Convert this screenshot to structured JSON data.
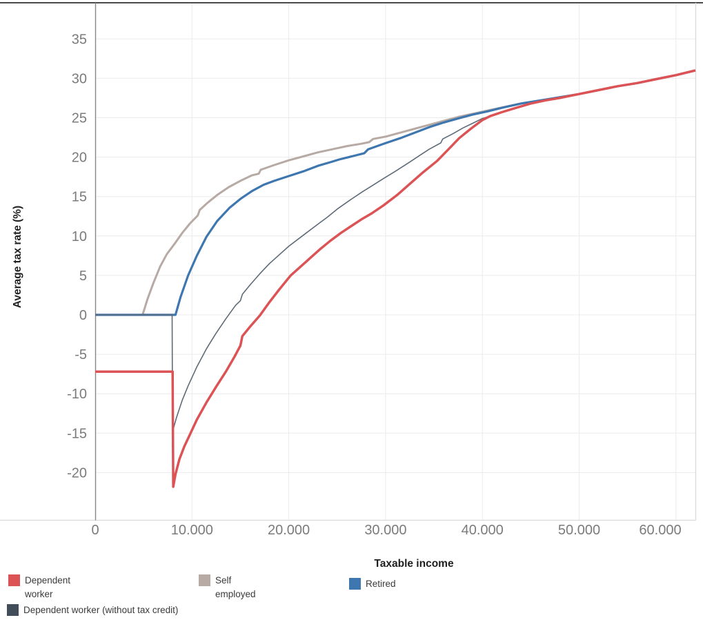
{
  "chart": {
    "x_axis_title": "Taxable income",
    "y_axis_title": "Average tax rate (%)",
    "x_ticks": [
      {
        "label": "0",
        "value": 0
      },
      {
        "label": "10.000",
        "value": 10000
      },
      {
        "label": "20.000",
        "value": 20000
      },
      {
        "label": "30.000",
        "value": 30000
      },
      {
        "label": "40.000",
        "value": 40000
      },
      {
        "label": "50.000",
        "value": 50000
      },
      {
        "label": "60.000",
        "value": 60000
      }
    ],
    "y_ticks": [
      {
        "label": "35",
        "value": 35
      },
      {
        "label": "30",
        "value": 30
      },
      {
        "label": "25",
        "value": 25
      },
      {
        "label": "20",
        "value": 20
      },
      {
        "label": "15",
        "value": 15
      },
      {
        "label": "10",
        "value": 10
      },
      {
        "label": "5",
        "value": 5
      },
      {
        "label": "0",
        "value": 0
      },
      {
        "label": "-5",
        "value": -5
      },
      {
        "label": "-10",
        "value": -10
      },
      {
        "label": "-15",
        "value": -15
      },
      {
        "label": "-20",
        "value": -20
      }
    ]
  },
  "chart_data": {
    "type": "line",
    "title": "",
    "xlabel": "Taxable income",
    "ylabel": "Average tax rate (%)",
    "xlim": [
      0,
      62000
    ],
    "ylim": [
      -26,
      39
    ],
    "grid": true,
    "legend_position": "bottom",
    "series": [
      {
        "id": "self-employed",
        "name": "Self employed",
        "color": "#b7aaa4",
        "width": 3,
        "points": [
          [
            0,
            0
          ],
          [
            4900,
            0
          ],
          [
            5400,
            2
          ],
          [
            6000,
            4
          ],
          [
            6700,
            6.1
          ],
          [
            7400,
            7.7
          ],
          [
            8200,
            9
          ],
          [
            9000,
            10.4
          ],
          [
            9800,
            11.6
          ],
          [
            10600,
            12.6
          ],
          [
            10800,
            13.3
          ],
          [
            11600,
            14.2
          ],
          [
            12600,
            15.2
          ],
          [
            13800,
            16.2
          ],
          [
            15000,
            17
          ],
          [
            16200,
            17.7
          ],
          [
            16900,
            17.9
          ],
          [
            17100,
            18.4
          ],
          [
            18500,
            19
          ],
          [
            20000,
            19.6
          ],
          [
            21500,
            20.1
          ],
          [
            23000,
            20.6
          ],
          [
            24500,
            21
          ],
          [
            26000,
            21.4
          ],
          [
            27500,
            21.7
          ],
          [
            28300,
            21.9
          ],
          [
            28700,
            22.3
          ],
          [
            30000,
            22.6
          ],
          [
            31500,
            23.1
          ],
          [
            33000,
            23.6
          ],
          [
            34500,
            24.1
          ],
          [
            36000,
            24.6
          ],
          [
            37500,
            25.1
          ],
          [
            39000,
            25.5
          ],
          [
            40500,
            25.9
          ],
          [
            42000,
            26.3
          ],
          [
            44000,
            26.8
          ],
          [
            46000,
            27.2
          ],
          [
            48000,
            27.6
          ],
          [
            50000,
            28
          ],
          [
            52000,
            28.5
          ],
          [
            54000,
            29
          ],
          [
            56000,
            29.4
          ],
          [
            58000,
            29.9
          ],
          [
            60000,
            30.4
          ],
          [
            62000,
            31
          ]
        ]
      },
      {
        "id": "retired",
        "name": "Retired",
        "color": "#3e76af",
        "width": 3.2,
        "points": [
          [
            0,
            0
          ],
          [
            8300,
            0
          ],
          [
            8800,
            2.2
          ],
          [
            9600,
            5
          ],
          [
            10500,
            7.5
          ],
          [
            11500,
            9.9
          ],
          [
            12600,
            11.9
          ],
          [
            13900,
            13.6
          ],
          [
            15000,
            14.7
          ],
          [
            16200,
            15.7
          ],
          [
            17400,
            16.5
          ],
          [
            18500,
            17
          ],
          [
            20000,
            17.6
          ],
          [
            21500,
            18.2
          ],
          [
            23000,
            18.9
          ],
          [
            24400,
            19.4
          ],
          [
            25200,
            19.7
          ],
          [
            26500,
            20.1
          ],
          [
            27800,
            20.5
          ],
          [
            28200,
            21
          ],
          [
            29800,
            21.7
          ],
          [
            31500,
            22.4
          ],
          [
            33000,
            23.1
          ],
          [
            34500,
            23.8
          ],
          [
            36000,
            24.4
          ],
          [
            37500,
            24.9
          ],
          [
            39000,
            25.4
          ],
          [
            40500,
            25.8
          ],
          [
            42000,
            26.25
          ],
          [
            44000,
            26.8
          ],
          [
            46000,
            27.2
          ],
          [
            48000,
            27.6
          ],
          [
            50000,
            28
          ],
          [
            52000,
            28.5
          ],
          [
            54000,
            29
          ],
          [
            56000,
            29.4
          ],
          [
            58000,
            29.9
          ],
          [
            60000,
            30.4
          ],
          [
            62000,
            31
          ]
        ]
      },
      {
        "id": "dependent-worker-no-credit",
        "name": "Dependent worker (without tax credit)",
        "color": "#5d6a77",
        "width": 1.6,
        "points": [
          [
            0,
            0
          ],
          [
            7950,
            0
          ],
          [
            7990,
            -14.8
          ],
          [
            8400,
            -13
          ],
          [
            9000,
            -10.8
          ],
          [
            9600,
            -9
          ],
          [
            10500,
            -6.6
          ],
          [
            11500,
            -4.3
          ],
          [
            12500,
            -2.3
          ],
          [
            13500,
            -0.5
          ],
          [
            14500,
            1.2
          ],
          [
            15000,
            1.8
          ],
          [
            15200,
            2.6
          ],
          [
            16000,
            3.8
          ],
          [
            17000,
            5.2
          ],
          [
            18000,
            6.5
          ],
          [
            19000,
            7.6
          ],
          [
            20000,
            8.7
          ],
          [
            21500,
            10.1
          ],
          [
            23000,
            11.5
          ],
          [
            24000,
            12.4
          ],
          [
            25100,
            13.5
          ],
          [
            26500,
            14.7
          ],
          [
            27600,
            15.6
          ],
          [
            28500,
            16.3
          ],
          [
            29800,
            17.3
          ],
          [
            31000,
            18.2
          ],
          [
            32400,
            19.3
          ],
          [
            33500,
            20.2
          ],
          [
            34500,
            21
          ],
          [
            35700,
            21.8
          ],
          [
            35900,
            22.3
          ],
          [
            37000,
            23
          ],
          [
            38000,
            23.7
          ],
          [
            39000,
            24.3
          ],
          [
            40000,
            24.9
          ],
          [
            40800,
            25.2
          ]
        ]
      },
      {
        "id": "dependent-worker",
        "name": "Dependent worker",
        "color": "#dc5356",
        "width": 3.5,
        "points": [
          [
            0,
            -7.2
          ],
          [
            8000,
            -7.2
          ],
          [
            8060,
            -21.8
          ],
          [
            8300,
            -20.2
          ],
          [
            8700,
            -18.3
          ],
          [
            9200,
            -16.7
          ],
          [
            9700,
            -15.4
          ],
          [
            10500,
            -13.3
          ],
          [
            11500,
            -11.1
          ],
          [
            12500,
            -9.1
          ],
          [
            13500,
            -7.2
          ],
          [
            14400,
            -5.3
          ],
          [
            15000,
            -3.9
          ],
          [
            15200,
            -2.7
          ],
          [
            16000,
            -1.5
          ],
          [
            17000,
            -0.1
          ],
          [
            18000,
            1.6
          ],
          [
            19000,
            3.2
          ],
          [
            20200,
            5
          ],
          [
            21300,
            6.2
          ],
          [
            22300,
            7.3
          ],
          [
            23300,
            8.4
          ],
          [
            24300,
            9.4
          ],
          [
            25400,
            10.4
          ],
          [
            26500,
            11.3
          ],
          [
            27500,
            12.1
          ],
          [
            28600,
            12.9
          ],
          [
            29800,
            13.9
          ],
          [
            31200,
            15.2
          ],
          [
            32400,
            16.5
          ],
          [
            33800,
            18
          ],
          [
            35300,
            19.5
          ],
          [
            36500,
            21
          ],
          [
            37600,
            22.4
          ],
          [
            38800,
            23.6
          ],
          [
            40000,
            24.7
          ],
          [
            40800,
            25.2
          ],
          [
            42000,
            25.7
          ],
          [
            43600,
            26.3
          ],
          [
            45000,
            26.8
          ],
          [
            46500,
            27.2
          ],
          [
            48000,
            27.5
          ],
          [
            50000,
            28
          ],
          [
            52000,
            28.5
          ],
          [
            54000,
            29
          ],
          [
            56000,
            29.4
          ],
          [
            58000,
            29.9
          ],
          [
            60000,
            30.4
          ],
          [
            62000,
            31
          ]
        ]
      }
    ]
  },
  "legend": {
    "items": [
      {
        "lines": [
          "Dependent",
          "worker"
        ],
        "color": "#dc5356"
      },
      {
        "lines": [
          "Self",
          "employed"
        ],
        "color": "#b7aaa4"
      },
      {
        "lines": [
          "Retired"
        ],
        "color": "#3e76af"
      },
      {
        "lines": [
          "Dependent worker (without tax credit)"
        ],
        "color": "#414d59"
      }
    ]
  }
}
